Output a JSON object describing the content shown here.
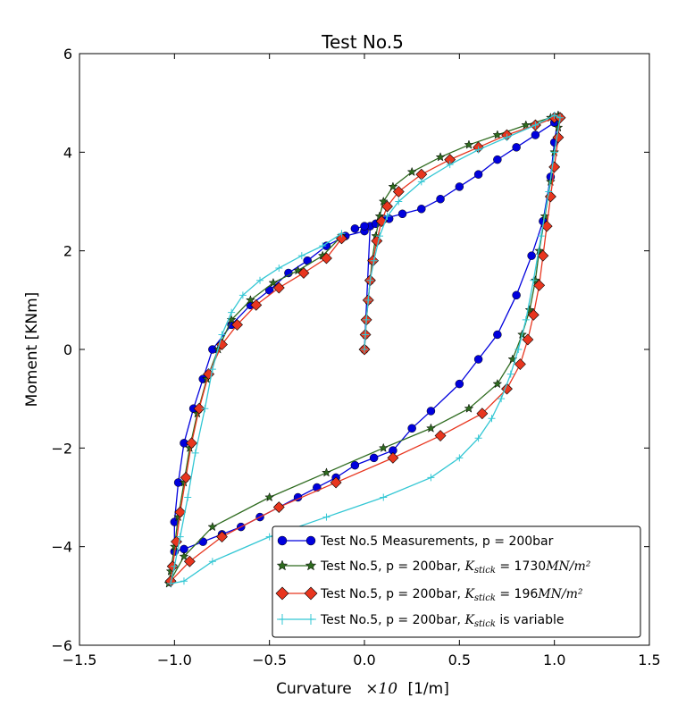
{
  "chart_data": {
    "type": "line",
    "title": "Test No.5",
    "xlabel": {
      "prefix": "Curvature",
      "math": "×10",
      "unit": "[1/m]"
    },
    "ylabel": "Moment [KNm]",
    "xlim": [
      -1.5,
      1.5
    ],
    "ylim": [
      -6,
      6
    ],
    "xticks": [
      -1.5,
      -1.0,
      -0.5,
      0.0,
      0.5,
      1.0,
      1.5
    ],
    "xtick_labels": [
      "−1.5",
      "−1.0",
      "−0.5",
      "0.0",
      "0.5",
      "1.0",
      "1.5"
    ],
    "yticks": [
      -6,
      -4,
      -2,
      0,
      2,
      4,
      6
    ],
    "ytick_labels": [
      "−6",
      "−4",
      "−2",
      "0",
      "2",
      "4",
      "6"
    ],
    "grid": false,
    "legend_position": "lower right",
    "legend": [
      {
        "text": "Test No.5 Measurements, p = 200bar",
        "math": "",
        "sub": "",
        "suffix": ""
      },
      {
        "text": "Test No.5, p = 200bar, ",
        "math": "K",
        "sub": "stick",
        "suffix": " = 1730",
        "unit": "MN/m²"
      },
      {
        "text": "Test No.5, p = 200bar, ",
        "math": "K",
        "sub": "stick",
        "suffix": " = 196",
        "unit": "MN/m²"
      },
      {
        "text": "Test No.5, p = 200bar, ",
        "math": "K",
        "sub": "stick",
        "suffix": " is variable",
        "unit": ""
      }
    ],
    "series": [
      {
        "name": "Test No.5 Measurements, p = 200bar",
        "color": "#0000dd",
        "marker": "circle",
        "x": [
          0.0,
          0.0,
          0.03,
          0.06,
          0.13,
          0.0,
          -0.1,
          -0.2,
          -0.3,
          -0.4,
          -0.5,
          -0.6,
          -0.7,
          -0.8,
          -0.85,
          -0.9,
          -0.95,
          -0.98,
          -1.0,
          -1.0,
          -0.95,
          -0.85,
          -0.75,
          -0.65,
          -0.55,
          -0.45,
          -0.35,
          -0.25,
          -0.15,
          -0.05,
          0.05,
          0.15,
          0.25,
          0.35,
          0.5,
          0.6,
          0.7,
          0.8,
          0.88,
          0.94,
          0.98,
          1.0,
          1.02,
          1.0,
          0.9,
          0.8,
          0.7,
          0.6,
          0.5,
          0.4,
          0.3,
          0.2,
          0.1,
          0.0,
          -0.05
        ],
        "y": [
          0.0,
          0.0,
          2.5,
          2.55,
          2.65,
          2.4,
          2.3,
          2.1,
          1.8,
          1.55,
          1.2,
          0.9,
          0.5,
          0.0,
          -0.6,
          -1.2,
          -1.9,
          -2.7,
          -3.5,
          -4.1,
          -4.05,
          -3.9,
          -3.75,
          -3.6,
          -3.4,
          -3.2,
          -3.0,
          -2.8,
          -2.6,
          -2.35,
          -2.2,
          -2.05,
          -1.6,
          -1.25,
          -0.7,
          -0.2,
          0.3,
          1.1,
          1.9,
          2.6,
          3.5,
          4.2,
          4.7,
          4.6,
          4.35,
          4.1,
          3.85,
          3.55,
          3.3,
          3.05,
          2.85,
          2.75,
          2.65,
          2.5,
          2.45
        ]
      },
      {
        "name": "Test No.5, p = 200bar, Kstick = 1730 MN/m²",
        "color": "#2e6b1f",
        "marker": "star",
        "x": [
          0.0,
          0.005,
          0.01,
          0.02,
          0.03,
          0.04,
          0.06,
          0.08,
          0.1,
          0.15,
          0.25,
          0.4,
          0.55,
          0.7,
          0.85,
          0.98,
          1.02,
          1.02,
          1.0,
          0.98,
          0.95,
          0.92,
          0.9,
          0.87,
          0.83,
          0.78,
          0.7,
          0.55,
          0.35,
          0.1,
          -0.2,
          -0.5,
          -0.8,
          -0.95,
          -1.03,
          -1.02,
          -1.0,
          -0.98,
          -0.95,
          -0.92,
          -0.88,
          -0.83,
          -0.77,
          -0.7,
          -0.6,
          -0.48,
          -0.35,
          -0.22,
          -0.12
        ],
        "y": [
          0.0,
          0.3,
          0.6,
          1.0,
          1.4,
          1.8,
          2.3,
          2.7,
          3.0,
          3.3,
          3.6,
          3.9,
          4.15,
          4.35,
          4.55,
          4.7,
          4.75,
          4.5,
          4.0,
          3.4,
          2.7,
          2.0,
          1.4,
          0.8,
          0.3,
          -0.2,
          -0.7,
          -1.2,
          -1.6,
          -2.0,
          -2.5,
          -3.0,
          -3.6,
          -4.2,
          -4.75,
          -4.5,
          -4.0,
          -3.4,
          -2.7,
          -2.0,
          -1.3,
          -0.6,
          0.0,
          0.6,
          1.0,
          1.35,
          1.6,
          1.9,
          2.3
        ]
      },
      {
        "name": "Test No.5, p = 200bar, Kstick = 196 MN/m²",
        "color": "#e8361f",
        "marker": "diamond",
        "x": [
          0.0,
          0.005,
          0.01,
          0.02,
          0.03,
          0.045,
          0.065,
          0.09,
          0.12,
          0.18,
          0.3,
          0.45,
          0.6,
          0.75,
          0.9,
          1.0,
          1.03,
          1.02,
          1.0,
          0.98,
          0.96,
          0.94,
          0.92,
          0.89,
          0.86,
          0.82,
          0.75,
          0.62,
          0.4,
          0.15,
          -0.15,
          -0.45,
          -0.75,
          -0.92,
          -1.02,
          -1.01,
          -0.99,
          -0.97,
          -0.94,
          -0.91,
          -0.87,
          -0.82,
          -0.75,
          -0.67,
          -0.57,
          -0.45,
          -0.32,
          -0.2,
          -0.12
        ],
        "y": [
          0.0,
          0.3,
          0.6,
          1.0,
          1.4,
          1.8,
          2.2,
          2.6,
          2.9,
          3.2,
          3.55,
          3.85,
          4.1,
          4.35,
          4.55,
          4.7,
          4.7,
          4.3,
          3.7,
          3.1,
          2.5,
          1.9,
          1.3,
          0.7,
          0.2,
          -0.3,
          -0.8,
          -1.3,
          -1.75,
          -2.2,
          -2.7,
          -3.2,
          -3.8,
          -4.3,
          -4.7,
          -4.4,
          -3.9,
          -3.3,
          -2.6,
          -1.9,
          -1.2,
          -0.5,
          0.1,
          0.5,
          0.9,
          1.25,
          1.55,
          1.85,
          2.25
        ]
      },
      {
        "name": "Test No.5, p = 200bar, Kstick is variable",
        "color": "#33c7d4",
        "marker": "plus",
        "x": [
          0.0,
          0.005,
          0.01,
          0.02,
          0.03,
          0.05,
          0.08,
          0.12,
          0.18,
          0.3,
          0.45,
          0.6,
          0.75,
          0.9,
          1.0,
          1.03,
          1.0,
          0.97,
          0.93,
          0.89,
          0.85,
          0.81,
          0.77,
          0.72,
          0.67,
          0.6,
          0.5,
          0.35,
          0.1,
          -0.2,
          -0.5,
          -0.8,
          -0.95,
          -1.02,
          -1.0,
          -0.97,
          -0.93,
          -0.89,
          -0.84,
          -0.8,
          -0.75,
          -0.7,
          -0.64,
          -0.55,
          -0.45,
          -0.33,
          -0.22,
          -0.12
        ],
        "y": [
          0.0,
          0.3,
          0.6,
          1.0,
          1.4,
          1.8,
          2.3,
          2.7,
          3.0,
          3.4,
          3.75,
          4.05,
          4.3,
          4.55,
          4.75,
          4.7,
          4.0,
          3.2,
          2.3,
          1.4,
          0.6,
          0.0,
          -0.5,
          -1.0,
          -1.4,
          -1.8,
          -2.2,
          -2.6,
          -3.0,
          -3.4,
          -3.8,
          -4.3,
          -4.7,
          -4.75,
          -4.4,
          -3.8,
          -3.0,
          -2.1,
          -1.2,
          -0.4,
          0.3,
          0.75,
          1.1,
          1.4,
          1.65,
          1.9,
          2.1,
          2.35
        ]
      }
    ]
  }
}
